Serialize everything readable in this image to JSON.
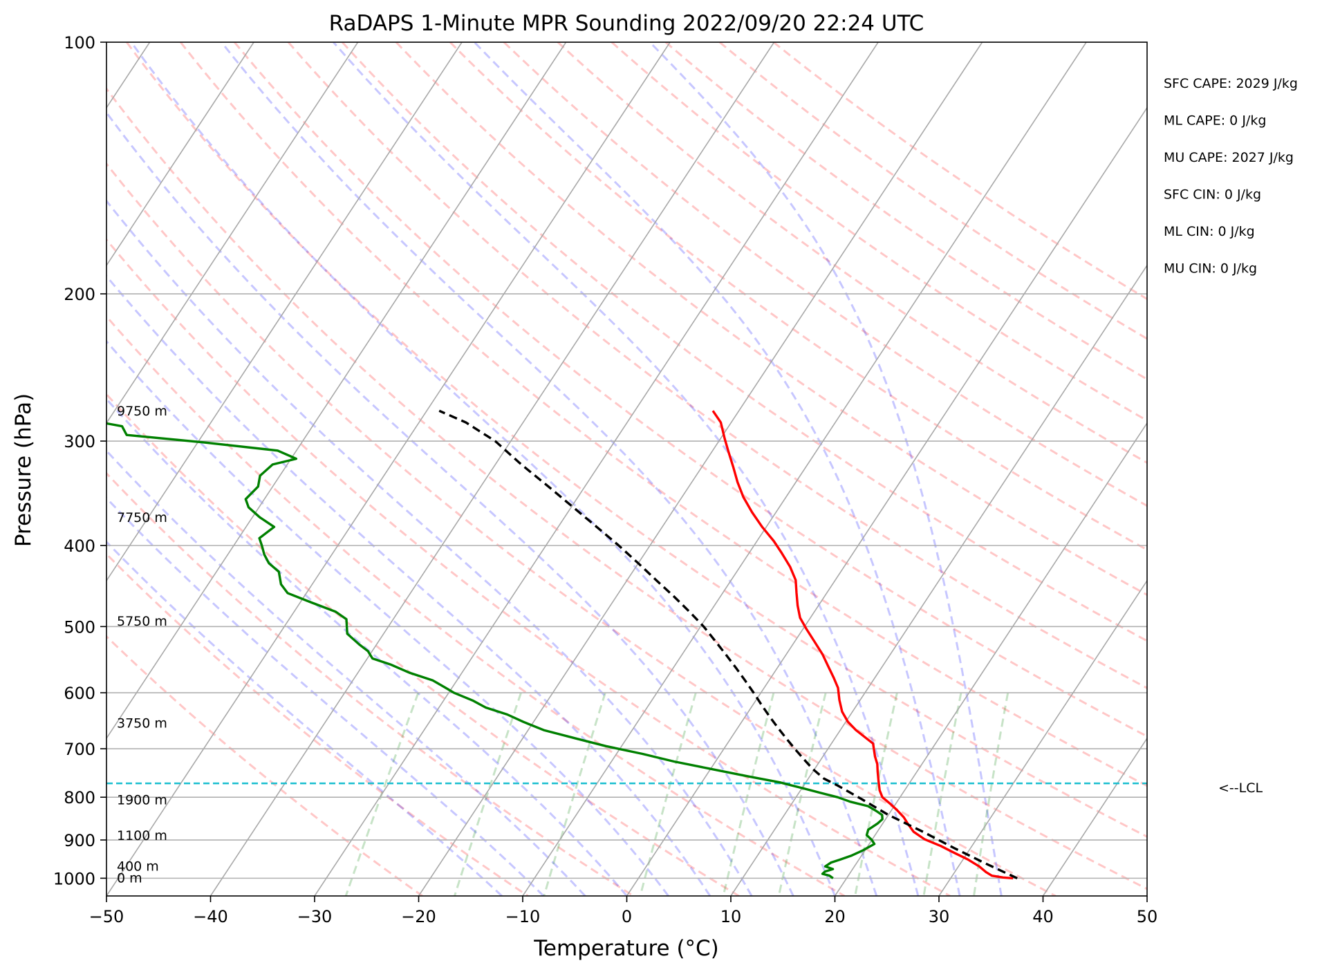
{
  "chart_data": {
    "type": "line",
    "title": "RaDAPS 1-Minute MPR Sounding 2022/09/20 22:24 UTC",
    "xlabel": "Temperature (°C)",
    "ylabel": "Pressure (hPa)",
    "xlim": [
      -50,
      50
    ],
    "ylim": [
      1050,
      100
    ],
    "y_scale": "log",
    "skew_t": true,
    "grid": true,
    "x_ticks": [
      "−50",
      "−40",
      "−30",
      "−20",
      "−10",
      "0",
      "10",
      "20",
      "30",
      "40",
      "50"
    ],
    "y_ticks": [
      "100",
      "200",
      "300",
      "400",
      "500",
      "600",
      "700",
      "800",
      "900",
      "1000"
    ],
    "y_tick_values": [
      100,
      200,
      300,
      400,
      500,
      600,
      700,
      800,
      900,
      1000
    ],
    "series": [
      {
        "color": "#ff0000",
        "points": [
          [
            36.0,
            1000
          ],
          [
            35.0,
            998
          ],
          [
            33.8,
            993
          ],
          [
            33.0,
            983
          ],
          [
            32.0,
            968
          ],
          [
            30.5,
            950
          ],
          [
            28.5,
            930
          ],
          [
            27.0,
            915
          ],
          [
            25.0,
            898
          ],
          [
            23.5,
            880
          ],
          [
            22.5,
            862
          ],
          [
            21.6,
            845
          ],
          [
            20.6,
            830
          ],
          [
            19.5,
            815
          ],
          [
            18.3,
            800
          ],
          [
            17.6,
            785
          ],
          [
            16.9,
            765
          ],
          [
            16.2,
            745
          ],
          [
            15.7,
            730
          ],
          [
            15.0,
            715
          ],
          [
            14.4,
            700
          ],
          [
            14.0,
            690
          ],
          [
            13.0,
            680
          ],
          [
            11.5,
            665
          ],
          [
            10.2,
            650
          ],
          [
            9.0,
            632
          ],
          [
            8.0,
            612
          ],
          [
            7.1,
            592
          ],
          [
            6.0,
            575
          ],
          [
            4.8,
            558
          ],
          [
            3.5,
            540
          ],
          [
            1.8,
            520
          ],
          [
            0.3,
            503
          ],
          [
            -1.0,
            488
          ],
          [
            -2.0,
            472
          ],
          [
            -2.9,
            456
          ],
          [
            -3.8,
            440
          ],
          [
            -5.2,
            424
          ],
          [
            -6.9,
            408
          ],
          [
            -8.4,
            395
          ],
          [
            -10.4,
            380
          ],
          [
            -12.3,
            365
          ],
          [
            -14.1,
            350
          ],
          [
            -15.6,
            336
          ],
          [
            -17.0,
            322
          ],
          [
            -18.4,
            309
          ],
          [
            -19.6,
            298
          ],
          [
            -21.0,
            285
          ],
          [
            -22.5,
            276
          ]
        ]
      },
      {
        "color": "#008000",
        "points": [
          [
            18.7,
            1000
          ],
          [
            18.2,
            993
          ],
          [
            17.4,
            988
          ],
          [
            17.5,
            982
          ],
          [
            18.1,
            975
          ],
          [
            17.2,
            968
          ],
          [
            17.5,
            958
          ],
          [
            18.2,
            950
          ],
          [
            19.0,
            940
          ],
          [
            19.8,
            926
          ],
          [
            20.5,
            910
          ],
          [
            20.0,
            900
          ],
          [
            19.2,
            888
          ],
          [
            19.0,
            875
          ],
          [
            19.5,
            860
          ],
          [
            19.7,
            850
          ],
          [
            19.4,
            840
          ],
          [
            18.5,
            830
          ],
          [
            17.5,
            820
          ],
          [
            15.5,
            810
          ],
          [
            14.0,
            800
          ],
          [
            12.0,
            790
          ],
          [
            10.0,
            780
          ],
          [
            7.5,
            768
          ],
          [
            4.0,
            755
          ],
          [
            0.0,
            740
          ],
          [
            -4.0,
            725
          ],
          [
            -7.5,
            710
          ],
          [
            -11.5,
            695
          ],
          [
            -15.0,
            680
          ],
          [
            -18.5,
            665
          ],
          [
            -21.0,
            650
          ],
          [
            -23.0,
            637
          ],
          [
            -25.5,
            625
          ],
          [
            -27.2,
            613
          ],
          [
            -29.5,
            600
          ],
          [
            -30.6,
            592
          ],
          [
            -32.3,
            580
          ],
          [
            -35.0,
            568
          ],
          [
            -37.4,
            555
          ],
          [
            -39.5,
            546
          ],
          [
            -40.4,
            535
          ],
          [
            -41.7,
            525
          ],
          [
            -43.5,
            510
          ],
          [
            -44.5,
            490
          ],
          [
            -46.0,
            480
          ],
          [
            -48.9,
            468
          ],
          [
            -51.8,
            456
          ],
          [
            -53.0,
            445
          ],
          [
            -54.0,
            430
          ],
          [
            -55.5,
            420
          ],
          [
            -56.5,
            410
          ],
          [
            -57.3,
            400
          ],
          [
            -58.0,
            392
          ],
          [
            -57.3,
            380
          ],
          [
            -59.3,
            370
          ],
          [
            -61.0,
            360
          ],
          [
            -61.8,
            352
          ],
          [
            -61.4,
            340
          ],
          [
            -61.9,
            330
          ],
          [
            -61.4,
            320
          ],
          [
            -59.5,
            315
          ],
          [
            -61.8,
            308
          ],
          [
            -69.5,
            301
          ],
          [
            -77.3,
            295
          ],
          [
            -78.3,
            288
          ],
          [
            -82.0,
            283
          ],
          [
            -87.5,
            276
          ]
        ]
      },
      {
        "color": "#000000",
        "dashed": true,
        "points": [
          [
            36.4,
            1000
          ],
          [
            32.4,
            960
          ],
          [
            28.4,
            920
          ],
          [
            24.4,
            880
          ],
          [
            20.0,
            840
          ],
          [
            16.3,
            803
          ],
          [
            13.3,
            775
          ],
          [
            11.5,
            760
          ],
          [
            9.8,
            740
          ],
          [
            8.3,
            720
          ],
          [
            6.8,
            700
          ],
          [
            5.3,
            680
          ],
          [
            3.8,
            660
          ],
          [
            2.3,
            640
          ],
          [
            0.8,
            620
          ],
          [
            -0.7,
            600
          ],
          [
            -2.3,
            580
          ],
          [
            -4.0,
            560
          ],
          [
            -5.8,
            540
          ],
          [
            -7.7,
            520
          ],
          [
            -9.7,
            500
          ],
          [
            -12.0,
            480
          ],
          [
            -14.5,
            460
          ],
          [
            -17.2,
            440
          ],
          [
            -20.0,
            420
          ],
          [
            -23.0,
            400
          ],
          [
            -26.3,
            380
          ],
          [
            -29.8,
            360
          ],
          [
            -33.5,
            340
          ],
          [
            -37.5,
            320
          ],
          [
            -41.5,
            300
          ],
          [
            -45.5,
            285
          ],
          [
            -48.8,
            276
          ]
        ]
      }
    ],
    "lcl_pressure": 770,
    "height_labels": [
      {
        "text": "9750 m",
        "pressure": 276
      },
      {
        "text": "7750 m",
        "pressure": 370
      },
      {
        "text": "5750 m",
        "pressure": 492
      },
      {
        "text": "3750 m",
        "pressure": 652
      },
      {
        "text": "1900 m",
        "pressure": 805
      },
      {
        "text": "1100 m",
        "pressure": 888
      },
      {
        "text": "400 m",
        "pressure": 967
      },
      {
        "text": "0 m",
        "pressure": 998
      }
    ],
    "lcl_label": "<--LCL",
    "annotations": [
      "SFC CAPE: 2029 J/kg",
      "ML CAPE: 0 J/kg",
      "MU CAPE: 2027 J/kg",
      "SFC CIN: 0 J/kg",
      "ML CIN: 0 J/kg",
      "MU CIN: 0 J/kg"
    ]
  }
}
